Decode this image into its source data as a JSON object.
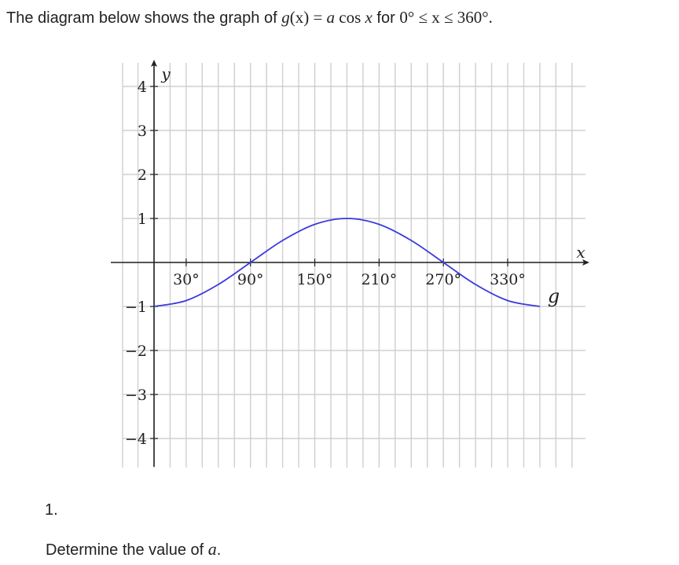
{
  "intro": {
    "text_before": "The diagram below shows the graph of ",
    "func": "g",
    "arg": "(x)",
    "equals": " = ",
    "coef": "a",
    "cos": " cos ",
    "var": "x",
    "word_for": " for ",
    "domain": "0° ≤ x ≤ 360°."
  },
  "question": {
    "number": "1.",
    "text_before": "Determine the value of ",
    "variable": "a",
    "text_after": "."
  },
  "chart_data": {
    "type": "line",
    "title": "",
    "xlabel": "x",
    "ylabel": "y",
    "xlim": [
      -30,
      390
    ],
    "ylim": [
      -4.6,
      4.6
    ],
    "x_ticks": [
      30,
      90,
      150,
      210,
      270,
      330
    ],
    "x_tick_labels": [
      "30°",
      "90°",
      "150°",
      "210°",
      "270°",
      "330°"
    ],
    "y_ticks": [
      -4,
      -3,
      -2,
      -1,
      1,
      2,
      3,
      4
    ],
    "y_tick_labels": [
      "−4",
      "−3",
      "−2",
      "−1",
      "1",
      "2",
      "3",
      "4"
    ],
    "grid_x_step": 15,
    "grid_y_step": 1,
    "grid": true,
    "series": [
      {
        "name": "g",
        "color": "#3a3adf",
        "x": [
          0,
          30,
          60,
          90,
          120,
          150,
          180,
          210,
          240,
          270,
          300,
          330,
          360
        ],
        "y": [
          -1,
          -0.866,
          -0.5,
          0,
          0.5,
          0.866,
          1,
          0.866,
          0.5,
          0,
          -0.5,
          -0.866,
          -1
        ]
      }
    ]
  }
}
